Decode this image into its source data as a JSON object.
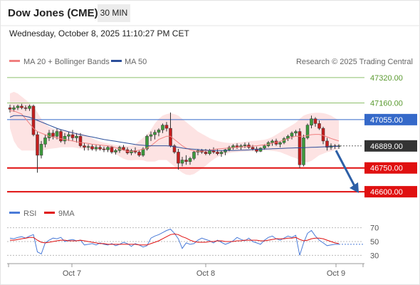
{
  "header": {
    "title": "Dow Jones (CME)",
    "timeframe": "30 MIN"
  },
  "datetime": "Wednesday, October 8, 2025 11:10:27 PM CET",
  "legend": {
    "bollinger": "MA 20 + Bollinger Bands",
    "ma50": "MA 50",
    "credit": "Research © 2025 Trading Central",
    "rsi": "RSI",
    "rsi_ma": "9MA"
  },
  "colors": {
    "candle_up": "#3c9a3c",
    "candle_down": "#c41e1e",
    "bollinger": "#f08080",
    "band_fill": "#fde3e3",
    "ma50": "#2c4f9a",
    "level_green": "#8ec06c",
    "level_blue": "#3569c9",
    "level_red": "#e01010",
    "arrow": "#2d5fa6",
    "rsi": "#4a7bd8",
    "rsi_ma": "#e01010",
    "current_price_bg": "#333333"
  },
  "chart_data": {
    "type": "candlestick",
    "ylim": [
      46560,
      47360
    ],
    "x_ticks": [
      "Oct 7",
      "Oct 8",
      "Oct 9"
    ],
    "price_levels": [
      {
        "label": "47320.00",
        "value": 47320,
        "kind": "resistance_green"
      },
      {
        "label": "47160.00",
        "value": 47160,
        "kind": "resistance_green"
      },
      {
        "label": "47055.00",
        "value": 47055,
        "kind": "pivot_blue"
      },
      {
        "label": "46889.00",
        "value": 46889,
        "kind": "current_price"
      },
      {
        "label": "46750.00",
        "value": 46750,
        "kind": "support_red"
      },
      {
        "label": "46600.00",
        "value": 46600,
        "kind": "support_red"
      }
    ],
    "forecast_arrow": {
      "from": 46860,
      "to": 46610
    },
    "candles": [
      [
        47130,
        47150,
        47100,
        47120
      ],
      [
        47120,
        47145,
        47105,
        47130
      ],
      [
        47130,
        47150,
        47115,
        47140
      ],
      [
        47140,
        47155,
        47120,
        47130
      ],
      [
        47130,
        47145,
        47110,
        47125
      ],
      [
        47125,
        47150,
        47110,
        47140
      ],
      [
        47140,
        47150,
        46950,
        46960
      ],
      [
        46960,
        46980,
        46720,
        46830
      ],
      [
        46830,
        46920,
        46810,
        46900
      ],
      [
        46900,
        46960,
        46880,
        46940
      ],
      [
        46940,
        46990,
        46920,
        46970
      ],
      [
        46970,
        46990,
        46930,
        46950
      ],
      [
        46950,
        47000,
        46930,
        46980
      ],
      [
        46980,
        46990,
        46910,
        46920
      ],
      [
        46920,
        46970,
        46900,
        46950
      ],
      [
        46950,
        46980,
        46920,
        46960
      ],
      [
        46960,
        46990,
        46920,
        46940
      ],
      [
        46940,
        46970,
        46910,
        46950
      ],
      [
        46950,
        46970,
        46880,
        46890
      ],
      [
        46890,
        46910,
        46860,
        46880
      ],
      [
        46880,
        46900,
        46860,
        46885
      ],
      [
        46885,
        46900,
        46860,
        46870
      ],
      [
        46870,
        46895,
        46855,
        46880
      ],
      [
        46880,
        46895,
        46860,
        46870
      ],
      [
        46870,
        46885,
        46850,
        46865
      ],
      [
        46865,
        46890,
        46850,
        46880
      ],
      [
        46880,
        46890,
        46840,
        46850
      ],
      [
        46850,
        46870,
        46835,
        46860
      ],
      [
        46860,
        46890,
        46845,
        46880
      ],
      [
        46880,
        46895,
        46860,
        46865
      ],
      [
        46865,
        46880,
        46835,
        46845
      ],
      [
        46845,
        46870,
        46830,
        46860
      ],
      [
        46860,
        46880,
        46840,
        46850
      ],
      [
        46850,
        46860,
        46820,
        46830
      ],
      [
        46830,
        46880,
        46820,
        46870
      ],
      [
        46870,
        46960,
        46860,
        46950
      ],
      [
        46950,
        46980,
        46920,
        46960
      ],
      [
        46960,
        46990,
        46930,
        46975
      ],
      [
        46975,
        47000,
        46950,
        46990
      ],
      [
        46990,
        47030,
        46970,
        47020
      ],
      [
        47020,
        47040,
        46980,
        47000
      ],
      [
        47000,
        47100,
        46880,
        46890
      ],
      [
        46890,
        46900,
        46840,
        46850
      ],
      [
        46850,
        46870,
        46740,
        46780
      ],
      [
        46780,
        46820,
        46760,
        46800
      ],
      [
        46800,
        46830,
        46770,
        46790
      ],
      [
        46790,
        46820,
        46770,
        46810
      ],
      [
        46810,
        46860,
        46800,
        46850
      ],
      [
        46850,
        46870,
        46830,
        46860
      ],
      [
        46860,
        46870,
        46840,
        46850
      ],
      [
        46850,
        46870,
        46830,
        46840
      ],
      [
        46840,
        46870,
        46830,
        46860
      ],
      [
        46860,
        46880,
        46840,
        46850
      ],
      [
        46850,
        46870,
        46830,
        46840
      ],
      [
        46840,
        46860,
        46820,
        46850
      ],
      [
        46850,
        46870,
        46830,
        46865
      ],
      [
        46865,
        46890,
        46855,
        46880
      ],
      [
        46880,
        46900,
        46865,
        46890
      ],
      [
        46890,
        46905,
        46870,
        46880
      ],
      [
        46880,
        46900,
        46865,
        46890
      ],
      [
        46890,
        46910,
        46875,
        46895
      ],
      [
        46895,
        46910,
        46870,
        46880
      ],
      [
        46880,
        46895,
        46860,
        46870
      ],
      [
        46870,
        46885,
        46845,
        46855
      ],
      [
        46855,
        46880,
        46850,
        46875
      ],
      [
        46875,
        46900,
        46865,
        46890
      ],
      [
        46890,
        46920,
        46880,
        46910
      ],
      [
        46910,
        46930,
        46890,
        46920
      ],
      [
        46920,
        46935,
        46890,
        46900
      ],
      [
        46900,
        46920,
        46880,
        46910
      ],
      [
        46910,
        46945,
        46900,
        46935
      ],
      [
        46935,
        46960,
        46920,
        46950
      ],
      [
        46950,
        46980,
        46930,
        46970
      ],
      [
        46970,
        46990,
        46950,
        46980
      ],
      [
        46980,
        47000,
        46750,
        46770
      ],
      [
        46770,
        46960,
        46760,
        46940
      ],
      [
        46940,
        47030,
        46930,
        47020
      ],
      [
        47020,
        47080,
        47000,
        47060
      ],
      [
        47060,
        47070,
        47010,
        47030
      ],
      [
        47030,
        47050,
        46990,
        47000
      ],
      [
        47000,
        47010,
        46900,
        46920
      ],
      [
        46920,
        46940,
        46860,
        46880
      ],
      [
        46880,
        46905,
        46865,
        46890
      ],
      [
        46890,
        46900,
        46870,
        46885
      ],
      [
        46885,
        46900,
        46870,
        46890
      ]
    ],
    "bollinger": {
      "mid": [
        47110,
        47110,
        47100,
        47090,
        47060,
        47030,
        47000,
        46980,
        46970,
        46960,
        46950,
        46945,
        46940,
        46935,
        46930,
        46925,
        46920,
        46915,
        46910,
        46908,
        46905,
        46900,
        46897,
        46895,
        46892,
        46890,
        46885,
        46878,
        46870,
        46862,
        46855,
        46855,
        46858,
        46862,
        46868,
        46875,
        46890,
        46910,
        46930,
        46940,
        46950,
        46950,
        46930,
        46910,
        46890,
        46875,
        46865,
        46858,
        46855,
        46856,
        46858,
        46862,
        46866,
        46870,
        46872,
        46874,
        46876,
        46878,
        46880,
        46882,
        46884,
        46886,
        46888,
        46890,
        46893,
        46896,
        46900,
        46906,
        46912,
        46918,
        46926,
        46934,
        46943,
        46950,
        46950,
        46950,
        46955,
        46960,
        46962,
        46962,
        46955,
        46946,
        46936,
        46928,
        46920
      ],
      "upper": [
        47220,
        47230,
        47220,
        47200,
        47180,
        47160,
        47140,
        47100,
        47060,
        47030,
        47010,
        46998,
        46992,
        46990,
        46988,
        46983,
        46977,
        46973,
        46968,
        46962,
        46950,
        46938,
        46926,
        46916,
        46910,
        46905,
        46900,
        46895,
        46892,
        46890,
        46890,
        46892,
        46900,
        46920,
        46940,
        46960,
        46990,
        47030,
        47060,
        47080,
        47090,
        47095,
        47090,
        47080,
        47060,
        47040,
        47020,
        47000,
        46980,
        46966,
        46952,
        46938,
        46928,
        46920,
        46914,
        46910,
        46908,
        46908,
        46910,
        46912,
        46915,
        46918,
        46920,
        46922,
        46925,
        46928,
        46935,
        46945,
        46960,
        46975,
        46990,
        47005,
        47020,
        47035,
        47060,
        47080,
        47090,
        47095,
        47098,
        47098,
        47096,
        47090,
        47080,
        47065,
        47050
      ],
      "lower": [
        47000,
        46920,
        46880,
        46860,
        46860,
        46860,
        46860,
        46860,
        46860,
        46865,
        46870,
        46873,
        46876,
        46880,
        46880,
        46880,
        46880,
        46877,
        46872,
        46868,
        46865,
        46863,
        46862,
        46862,
        46862,
        46862,
        46855,
        46840,
        46822,
        46808,
        46800,
        46798,
        46800,
        46800,
        46798,
        46790,
        46790,
        46790,
        46800,
        46800,
        46800,
        46780,
        46760,
        46740,
        46720,
        46708,
        46705,
        46712,
        46728,
        46746,
        46764,
        46786,
        46804,
        46820,
        46830,
        46838,
        46844,
        46848,
        46850,
        46852,
        46853,
        46854,
        46855,
        46856,
        46858,
        46860,
        46860,
        46858,
        46855,
        46850,
        46840,
        46830,
        46820,
        46812,
        46800,
        46790,
        46785,
        46795,
        46812,
        46830,
        46840,
        46850,
        46855,
        46862,
        46870
      ]
    },
    "ma50": [
      47070,
      47080,
      47080,
      47080,
      47075,
      47070,
      47060,
      47050,
      47040,
      47030,
      47020,
      47010,
      47000,
      46992,
      46985,
      46978,
      46972,
      46966,
      46960,
      46955,
      46950,
      46945,
      46940,
      46935,
      46930,
      46926,
      46922,
      46918,
      46914,
      46910,
      46906,
      46902,
      46898,
      46895,
      46893,
      46891,
      46890,
      46890,
      46890,
      46890,
      46890,
      46888,
      46884,
      46880,
      46876,
      46872,
      46870,
      46868,
      46866,
      46864,
      46862,
      46861,
      46860,
      46860,
      46860,
      46860,
      46860,
      46860,
      46861,
      46862,
      46863,
      46864,
      46866,
      46867,
      46868,
      46869,
      46870,
      46871,
      46872,
      46873,
      46874,
      46875,
      46876,
      46877,
      46877,
      46878,
      46879,
      46880,
      46881,
      46882,
      46883,
      46884,
      46885,
      46886,
      46887
    ],
    "rsi": {
      "ticks": [
        70,
        50,
        30
      ],
      "ylim": [
        20,
        80
      ],
      "values": [
        55,
        54,
        56,
        57,
        55,
        58,
        60,
        35,
        32,
        48,
        52,
        55,
        54,
        56,
        50,
        52,
        53,
        51,
        52,
        45,
        46,
        47,
        45,
        48,
        46,
        45,
        47,
        44,
        46,
        49,
        47,
        43,
        47,
        45,
        42,
        44,
        55,
        58,
        60,
        63,
        66,
        68,
        62,
        54,
        40,
        48,
        46,
        47,
        52,
        55,
        53,
        51,
        48,
        52,
        49,
        46,
        48,
        51,
        56,
        53,
        51,
        55,
        50,
        48,
        46,
        52,
        56,
        58,
        54,
        52,
        55,
        58,
        56,
        59,
        30,
        48,
        62,
        66,
        58,
        52,
        48,
        44,
        45,
        46,
        46
      ],
      "ma9": [
        52,
        52,
        53,
        54,
        55,
        56,
        56,
        52,
        49,
        48,
        49,
        50,
        51,
        52,
        52,
        51,
        51,
        51,
        52,
        51,
        50,
        49,
        48,
        47,
        47,
        46,
        46,
        46,
        46,
        46,
        46,
        46,
        46,
        45,
        45,
        45,
        47,
        49,
        51,
        54,
        57,
        60,
        61,
        60,
        57,
        55,
        52,
        50,
        49,
        49,
        49,
        50,
        50,
        51,
        51,
        50,
        50,
        50,
        51,
        51,
        52,
        52,
        52,
        52,
        51,
        51,
        52,
        53,
        54,
        54,
        54,
        55,
        55,
        56,
        53,
        51,
        52,
        54,
        55,
        55,
        54,
        52,
        50,
        48,
        47
      ]
    }
  }
}
